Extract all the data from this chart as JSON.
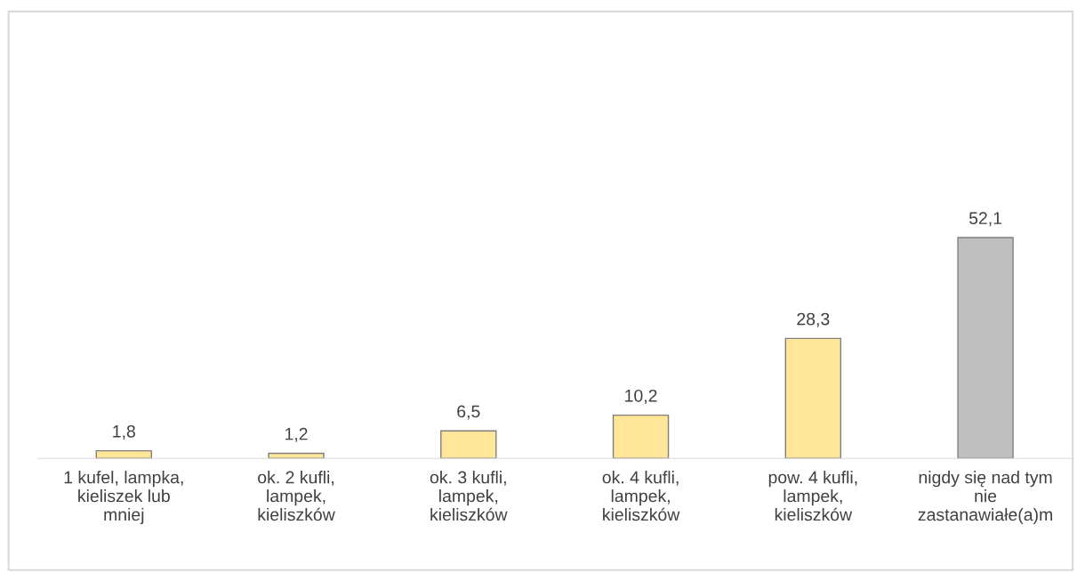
{
  "chart_data": {
    "type": "bar",
    "categories": [
      "1 kufel, lampka,\nkieliszek lub\nmniej",
      "ok. 2 kufli,\nlampek,\nkieliszków",
      "ok. 3 kufli,\nlampek,\nkieliszków",
      "ok. 4 kufli,\nlampek,\nkieliszków",
      "pow. 4 kufli,\nlampek,\nkieliszków",
      "nigdy się nad tym\nnie\nzastanawiałe(a)m"
    ],
    "values": [
      1.8,
      1.2,
      6.5,
      10.2,
      28.3,
      52.1
    ],
    "colors": [
      "#ffe699",
      "#ffe699",
      "#ffe699",
      "#ffe699",
      "#ffe699",
      "#bfbfbf"
    ],
    "value_labels": [
      "1,8",
      "1,2",
      "6,5",
      "10,2",
      "28,3",
      "52,1"
    ]
  }
}
